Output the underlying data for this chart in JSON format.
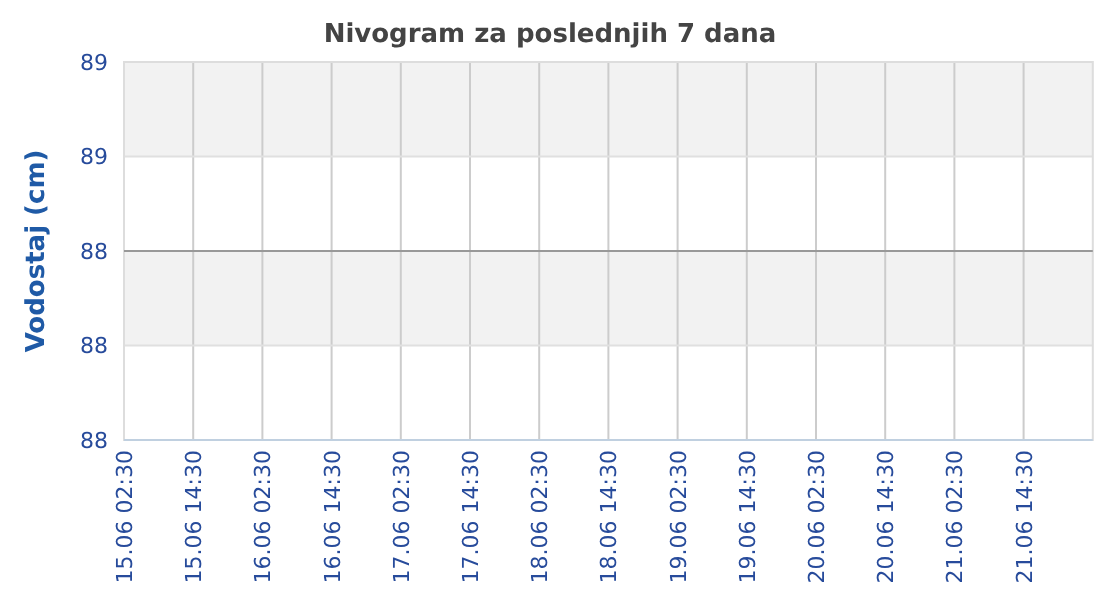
{
  "chart_data": {
    "type": "line",
    "title": "Nivogram za poslednjih 7 dana",
    "ylabel": "Vodostaj (cm)",
    "categories": [
      "15.06 02:30",
      "15.06 14:30",
      "16.06 02:30",
      "16.06 14:30",
      "17.06 02:30",
      "17.06 14:30",
      "18.06 02:30",
      "18.06 14:30",
      "19.06 02:30",
      "19.06 14:30",
      "20.06 02:30",
      "20.06 14:30",
      "21.06 02:30",
      "21.06 14:30",
      null
    ],
    "series": [
      {
        "color": "#999999",
        "values": [
          88.4,
          88.4,
          88.4,
          88.4,
          88.4,
          88.4,
          88.4,
          88.4,
          88.4,
          88.4,
          88.4,
          88.4,
          88.4,
          88.4,
          88.4
        ]
      }
    ],
    "ylim": [
      88.0,
      88.8
    ],
    "yticks": [
      {
        "value": 88.0,
        "label": "88"
      },
      {
        "value": 88.2,
        "label": "88"
      },
      {
        "value": 88.4,
        "label": "88"
      },
      {
        "value": 88.6,
        "label": "89"
      },
      {
        "value": 88.8,
        "label": "89"
      }
    ],
    "grid": true,
    "marker": "none",
    "line_style": "solid"
  }
}
